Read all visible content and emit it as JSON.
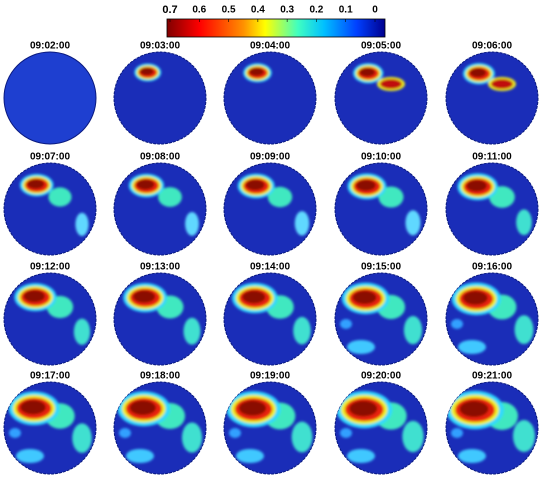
{
  "colorbar": {
    "ticks": [
      0.7,
      0.6,
      0.5,
      0.4,
      0.3,
      0.2,
      0.1,
      0
    ]
  },
  "panels": [
    {
      "time": "09:02:00"
    },
    {
      "time": "09:03:00"
    },
    {
      "time": "09:04:00"
    },
    {
      "time": "09:05:00"
    },
    {
      "time": "09:06:00"
    },
    {
      "time": "09:07:00"
    },
    {
      "time": "09:08:00"
    },
    {
      "time": "09:09:00"
    },
    {
      "time": "09:10:00"
    },
    {
      "time": "09:11:00"
    },
    {
      "time": "09:12:00"
    },
    {
      "time": "09:13:00"
    },
    {
      "time": "09:14:00"
    },
    {
      "time": "09:15:00"
    },
    {
      "time": "09:16:00"
    },
    {
      "time": "09:17:00"
    },
    {
      "time": "09:18:00"
    },
    {
      "time": "09:19:00"
    },
    {
      "time": "09:20:00"
    },
    {
      "time": "09:21:00"
    }
  ]
}
